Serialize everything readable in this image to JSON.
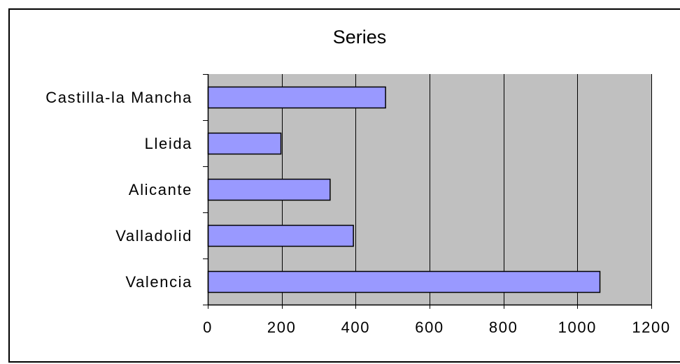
{
  "chart_data": {
    "type": "bar",
    "orientation": "horizontal",
    "title": "Series",
    "xlabel": "",
    "ylabel": "",
    "categories": [
      "Castilla-la Mancha",
      "Lleida",
      "Alicante",
      "Valladolid",
      "Valencia"
    ],
    "values": [
      480,
      197,
      330,
      393,
      1060
    ],
    "xlim": [
      0,
      1200
    ],
    "x_ticks": [
      0,
      200,
      400,
      600,
      800,
      1000,
      1200
    ],
    "x_tick_labels": [
      "0",
      "200",
      "400",
      "600",
      "800",
      "1000",
      "1200"
    ],
    "grid": "vertical",
    "legend": "none",
    "colors": {
      "bar_fill": "#9999ff",
      "bar_stroke": "#000000",
      "plot_background": "#c0c0c0",
      "gridline": "#000000",
      "chart_background": "#ffffff"
    }
  }
}
